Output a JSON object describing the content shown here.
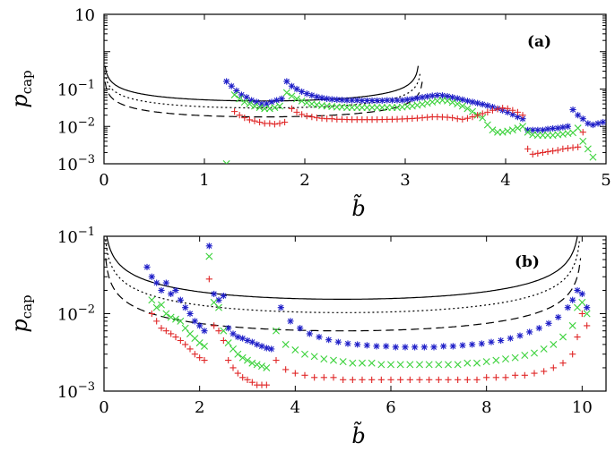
{
  "chart_data": [
    {
      "type": "scatter",
      "panel_label": "(a)",
      "xlabel": "b̃",
      "ylabel": "p_cap",
      "ylabel_main": "p",
      "ylabel_sub": "cap",
      "xlim": [
        0,
        5
      ],
      "ylim": [
        0.001,
        10
      ],
      "yscale": "log",
      "x_ticks": [
        "0",
        "1",
        "2",
        "3",
        "4",
        "5"
      ],
      "y_ticks": [
        {
          "base": "10",
          "exp": "",
          "value": 10
        },
        {
          "base": "10",
          "exp": "−1",
          "value": 0.1
        },
        {
          "base": "10",
          "exp": "−2",
          "value": 0.01
        },
        {
          "base": "10",
          "exp": "−3",
          "value": 0.001
        }
      ],
      "series": [
        {
          "name": "blue-asterisk",
          "marker": "*",
          "color": "#1f1fc8",
          "x": [
            1.22,
            1.27,
            1.32,
            1.37,
            1.42,
            1.47,
            1.52,
            1.57,
            1.62,
            1.67,
            1.72,
            1.77,
            1.82,
            1.87,
            1.92,
            1.97,
            2.02,
            2.07,
            2.12,
            2.17,
            2.22,
            2.27,
            2.32,
            2.37,
            2.42,
            2.47,
            2.52,
            2.57,
            2.62,
            2.67,
            2.72,
            2.77,
            2.82,
            2.87,
            2.92,
            2.97,
            3.02,
            3.07,
            3.12,
            3.17,
            3.22,
            3.27,
            3.32,
            3.37,
            3.42,
            3.47,
            3.52,
            3.57,
            3.62,
            3.67,
            3.72,
            3.77,
            3.82,
            3.87,
            3.92,
            3.97,
            4.02,
            4.07,
            4.12,
            4.17,
            4.22,
            4.27,
            4.32,
            4.37,
            4.42,
            4.47,
            4.52,
            4.57,
            4.62,
            4.67,
            4.72,
            4.77,
            4.82,
            4.87,
            4.92,
            4.97
          ],
          "y": [
            0.16,
            0.12,
            0.09,
            0.07,
            0.06,
            0.05,
            0.045,
            0.04,
            0.04,
            0.045,
            0.05,
            0.055,
            0.16,
            0.12,
            0.1,
            0.085,
            0.075,
            0.068,
            0.062,
            0.058,
            0.055,
            0.053,
            0.052,
            0.051,
            0.05,
            0.05,
            0.05,
            0.049,
            0.049,
            0.049,
            0.049,
            0.049,
            0.05,
            0.05,
            0.05,
            0.05,
            0.052,
            0.054,
            0.057,
            0.06,
            0.063,
            0.066,
            0.068,
            0.067,
            0.064,
            0.06,
            0.056,
            0.052,
            0.048,
            0.045,
            0.042,
            0.039,
            0.036,
            0.033,
            0.03,
            0.027,
            0.024,
            0.021,
            0.018,
            0.016,
            0.008,
            0.008,
            0.008,
            0.008,
            0.0085,
            0.0088,
            0.009,
            0.0095,
            0.01,
            0.028,
            0.02,
            0.016,
            0.012,
            0.011,
            0.012,
            0.013
          ]
        },
        {
          "name": "green-cross",
          "marker": "x",
          "color": "#3cd23c",
          "x": [
            1.22,
            1.3,
            1.35,
            1.4,
            1.45,
            1.5,
            1.55,
            1.6,
            1.65,
            1.7,
            1.75,
            1.82,
            1.87,
            1.92,
            1.97,
            2.02,
            2.07,
            2.12,
            2.17,
            2.22,
            2.27,
            2.32,
            2.37,
            2.42,
            2.47,
            2.52,
            2.57,
            2.62,
            2.67,
            2.72,
            2.77,
            2.82,
            2.87,
            2.92,
            2.97,
            3.02,
            3.07,
            3.12,
            3.17,
            3.22,
            3.27,
            3.32,
            3.37,
            3.42,
            3.47,
            3.52,
            3.57,
            3.62,
            3.67,
            3.72,
            3.77,
            3.82,
            3.87,
            3.92,
            3.97,
            4.02,
            4.07,
            4.12,
            4.17,
            4.22,
            4.27,
            4.32,
            4.37,
            4.42,
            4.47,
            4.52,
            4.57,
            4.62,
            4.67,
            4.72,
            4.77,
            4.82,
            4.87
          ],
          "y": [
            0.001,
            0.07,
            0.055,
            0.045,
            0.04,
            0.035,
            0.032,
            0.03,
            0.03,
            0.032,
            0.035,
            0.08,
            0.065,
            0.055,
            0.048,
            0.043,
            0.04,
            0.038,
            0.036,
            0.035,
            0.034,
            0.033,
            0.033,
            0.032,
            0.032,
            0.032,
            0.032,
            0.032,
            0.032,
            0.032,
            0.032,
            0.032,
            0.032,
            0.032,
            0.033,
            0.034,
            0.035,
            0.037,
            0.039,
            0.042,
            0.045,
            0.048,
            0.05,
            0.048,
            0.044,
            0.04,
            0.035,
            0.03,
            0.025,
            0.02,
            0.017,
            0.011,
            0.008,
            0.007,
            0.007,
            0.0075,
            0.008,
            0.009,
            0.01,
            0.007,
            0.006,
            0.0058,
            0.0058,
            0.0058,
            0.0058,
            0.006,
            0.0062,
            0.0065,
            0.0068,
            0.009,
            0.004,
            0.0025,
            0.0015
          ]
        },
        {
          "name": "red-plus",
          "marker": "+",
          "color": "#e02828",
          "x": [
            1.3,
            1.35,
            1.4,
            1.45,
            1.5,
            1.55,
            1.6,
            1.65,
            1.7,
            1.75,
            1.8,
            1.87,
            1.92,
            1.97,
            2.02,
            2.07,
            2.12,
            2.17,
            2.22,
            2.27,
            2.32,
            2.37,
            2.42,
            2.47,
            2.52,
            2.57,
            2.62,
            2.67,
            2.72,
            2.77,
            2.82,
            2.87,
            2.92,
            2.97,
            3.02,
            3.07,
            3.12,
            3.17,
            3.22,
            3.27,
            3.32,
            3.37,
            3.42,
            3.47,
            3.52,
            3.57,
            3.62,
            3.67,
            3.72,
            3.77,
            3.82,
            3.87,
            3.92,
            3.97,
            4.02,
            4.07,
            4.12,
            4.17,
            4.22,
            4.27,
            4.32,
            4.37,
            4.42,
            4.47,
            4.52,
            4.57,
            4.62,
            4.67,
            4.72,
            4.77
          ],
          "y": [
            0.025,
            0.02,
            0.017,
            0.015,
            0.014,
            0.013,
            0.012,
            0.012,
            0.0115,
            0.012,
            0.013,
            0.03,
            0.024,
            0.021,
            0.019,
            0.018,
            0.017,
            0.0165,
            0.016,
            0.016,
            0.0155,
            0.0155,
            0.0153,
            0.0152,
            0.0152,
            0.0152,
            0.0152,
            0.0152,
            0.0152,
            0.0153,
            0.0154,
            0.0155,
            0.0156,
            0.0158,
            0.016,
            0.0163,
            0.0166,
            0.017,
            0.0175,
            0.018,
            0.018,
            0.0178,
            0.0175,
            0.017,
            0.016,
            0.0155,
            0.0165,
            0.018,
            0.02,
            0.022,
            0.024,
            0.027,
            0.029,
            0.031,
            0.03,
            0.027,
            0.024,
            0.02,
            0.0025,
            0.0018,
            0.0019,
            0.002,
            0.0021,
            0.0022,
            0.0023,
            0.0025,
            0.0026,
            0.0027,
            0.0028,
            0.007
          ]
        }
      ],
      "lines": [
        {
          "name": "solid",
          "dash": "",
          "k": 0.02,
          "b_max": 3.14
        },
        {
          "name": "dotted",
          "dash": "2,3",
          "k": 0.013,
          "b_max": 3.16
        },
        {
          "name": "dashed",
          "dash": "9,5",
          "k": 0.0075,
          "b_max": 3.18
        }
      ]
    },
    {
      "type": "scatter",
      "panel_label": "(b)",
      "xlabel": "b̃",
      "ylabel": "p_cap",
      "ylabel_main": "p",
      "ylabel_sub": "cap",
      "xlim": [
        0,
        10.5
      ],
      "ylim": [
        0.001,
        0.1
      ],
      "yscale": "log",
      "x_ticks": [
        "0",
        "2",
        "4",
        "6",
        "8",
        "10"
      ],
      "y_ticks": [
        {
          "base": "10",
          "exp": "−1",
          "value": 0.1
        },
        {
          "base": "10",
          "exp": "−2",
          "value": 0.01
        },
        {
          "base": "10",
          "exp": "−3",
          "value": 0.001
        }
      ],
      "series": [
        {
          "name": "blue-asterisk",
          "marker": "*",
          "color": "#1f1fc8",
          "x": [
            0.9,
            1.0,
            1.1,
            1.2,
            1.3,
            1.4,
            1.5,
            1.6,
            1.7,
            1.8,
            1.9,
            2.0,
            2.1,
            2.2,
            2.3,
            2.4,
            2.5,
            2.6,
            2.7,
            2.8,
            2.9,
            3.0,
            3.1,
            3.2,
            3.3,
            3.4,
            3.5,
            3.7,
            3.9,
            4.1,
            4.3,
            4.5,
            4.7,
            4.9,
            5.1,
            5.3,
            5.5,
            5.7,
            5.9,
            6.1,
            6.3,
            6.5,
            6.7,
            6.9,
            7.1,
            7.3,
            7.5,
            7.7,
            7.9,
            8.1,
            8.3,
            8.5,
            8.7,
            8.9,
            9.1,
            9.3,
            9.5,
            9.7,
            9.8,
            9.9,
            10.0,
            10.1
          ],
          "y": [
            0.04,
            0.03,
            0.025,
            0.02,
            0.025,
            0.018,
            0.02,
            0.015,
            0.012,
            0.01,
            0.008,
            0.007,
            0.006,
            0.075,
            0.018,
            0.015,
            0.017,
            0.0065,
            0.0055,
            0.005,
            0.0048,
            0.0045,
            0.0043,
            0.004,
            0.0038,
            0.0036,
            0.0035,
            0.012,
            0.008,
            0.0065,
            0.0055,
            0.005,
            0.0046,
            0.0043,
            0.0041,
            0.004,
            0.0039,
            0.0038,
            0.0038,
            0.0037,
            0.0037,
            0.0037,
            0.0037,
            0.0037,
            0.0038,
            0.0038,
            0.0039,
            0.004,
            0.0041,
            0.0043,
            0.0045,
            0.0048,
            0.0052,
            0.0058,
            0.0065,
            0.0075,
            0.009,
            0.012,
            0.015,
            0.02,
            0.018,
            0.012
          ]
        },
        {
          "name": "green-cross",
          "marker": "x",
          "color": "#3cd23c",
          "x": [
            1.0,
            1.1,
            1.2,
            1.3,
            1.4,
            1.5,
            1.6,
            1.7,
            1.8,
            1.9,
            2.0,
            2.1,
            2.2,
            2.3,
            2.4,
            2.5,
            2.6,
            2.7,
            2.8,
            2.9,
            3.0,
            3.1,
            3.2,
            3.3,
            3.4,
            3.6,
            3.8,
            4.0,
            4.2,
            4.4,
            4.6,
            4.8,
            5.0,
            5.2,
            5.4,
            5.6,
            5.8,
            6.0,
            6.2,
            6.4,
            6.6,
            6.8,
            7.0,
            7.2,
            7.4,
            7.6,
            7.8,
            8.0,
            8.2,
            8.4,
            8.6,
            8.8,
            9.0,
            9.2,
            9.4,
            9.6,
            9.8,
            9.9,
            10.0,
            10.1
          ],
          "y": [
            0.015,
            0.012,
            0.013,
            0.01,
            0.009,
            0.0085,
            0.008,
            0.0065,
            0.0055,
            0.0048,
            0.0042,
            0.0038,
            0.055,
            0.014,
            0.012,
            0.006,
            0.0042,
            0.0035,
            0.003,
            0.0027,
            0.0025,
            0.0023,
            0.0022,
            0.0021,
            0.002,
            0.006,
            0.004,
            0.0034,
            0.003,
            0.0028,
            0.0026,
            0.0025,
            0.0024,
            0.0023,
            0.0023,
            0.0023,
            0.0022,
            0.0022,
            0.0022,
            0.0022,
            0.0022,
            0.0022,
            0.0022,
            0.0022,
            0.0022,
            0.0023,
            0.0023,
            0.0024,
            0.0025,
            0.0026,
            0.0027,
            0.0029,
            0.0031,
            0.0035,
            0.004,
            0.005,
            0.007,
            0.012,
            0.014,
            0.01
          ]
        },
        {
          "name": "red-plus",
          "marker": "+",
          "color": "#e02828",
          "x": [
            1.0,
            1.1,
            1.2,
            1.3,
            1.4,
            1.5,
            1.6,
            1.7,
            1.8,
            1.9,
            2.0,
            2.1,
            2.2,
            2.3,
            2.4,
            2.5,
            2.6,
            2.7,
            2.8,
            2.9,
            3.0,
            3.1,
            3.2,
            3.3,
            3.4,
            3.6,
            3.8,
            4.0,
            4.2,
            4.4,
            4.6,
            4.8,
            5.0,
            5.2,
            5.4,
            5.6,
            5.8,
            6.0,
            6.2,
            6.4,
            6.6,
            6.8,
            7.0,
            7.2,
            7.4,
            7.6,
            7.8,
            8.0,
            8.2,
            8.4,
            8.6,
            8.8,
            9.0,
            9.2,
            9.4,
            9.6,
            9.8,
            9.9,
            10.0,
            10.1
          ],
          "y": [
            0.01,
            0.008,
            0.0065,
            0.006,
            0.0055,
            0.005,
            0.0045,
            0.004,
            0.0035,
            0.003,
            0.0027,
            0.0025,
            0.028,
            0.007,
            0.006,
            0.0045,
            0.0025,
            0.002,
            0.0017,
            0.0015,
            0.0014,
            0.0013,
            0.0012,
            0.0012,
            0.0012,
            0.0025,
            0.0019,
            0.0017,
            0.0016,
            0.0015,
            0.0015,
            0.0015,
            0.0014,
            0.0014,
            0.0014,
            0.0014,
            0.0014,
            0.0014,
            0.0014,
            0.0014,
            0.0014,
            0.0014,
            0.0014,
            0.0014,
            0.0014,
            0.0014,
            0.0014,
            0.0015,
            0.0015,
            0.0015,
            0.0016,
            0.0016,
            0.0017,
            0.0018,
            0.002,
            0.0023,
            0.003,
            0.005,
            0.01,
            0.007
          ]
        }
      ],
      "lines": [
        {
          "name": "solid",
          "dash": "",
          "k": 0.0064,
          "b_max": 9.96
        },
        {
          "name": "dotted",
          "dash": "2,3",
          "k": 0.0043,
          "b_max": 9.98
        },
        {
          "name": "dashed",
          "dash": "9,5",
          "k": 0.0025,
          "b_max": 10.0
        }
      ]
    }
  ]
}
